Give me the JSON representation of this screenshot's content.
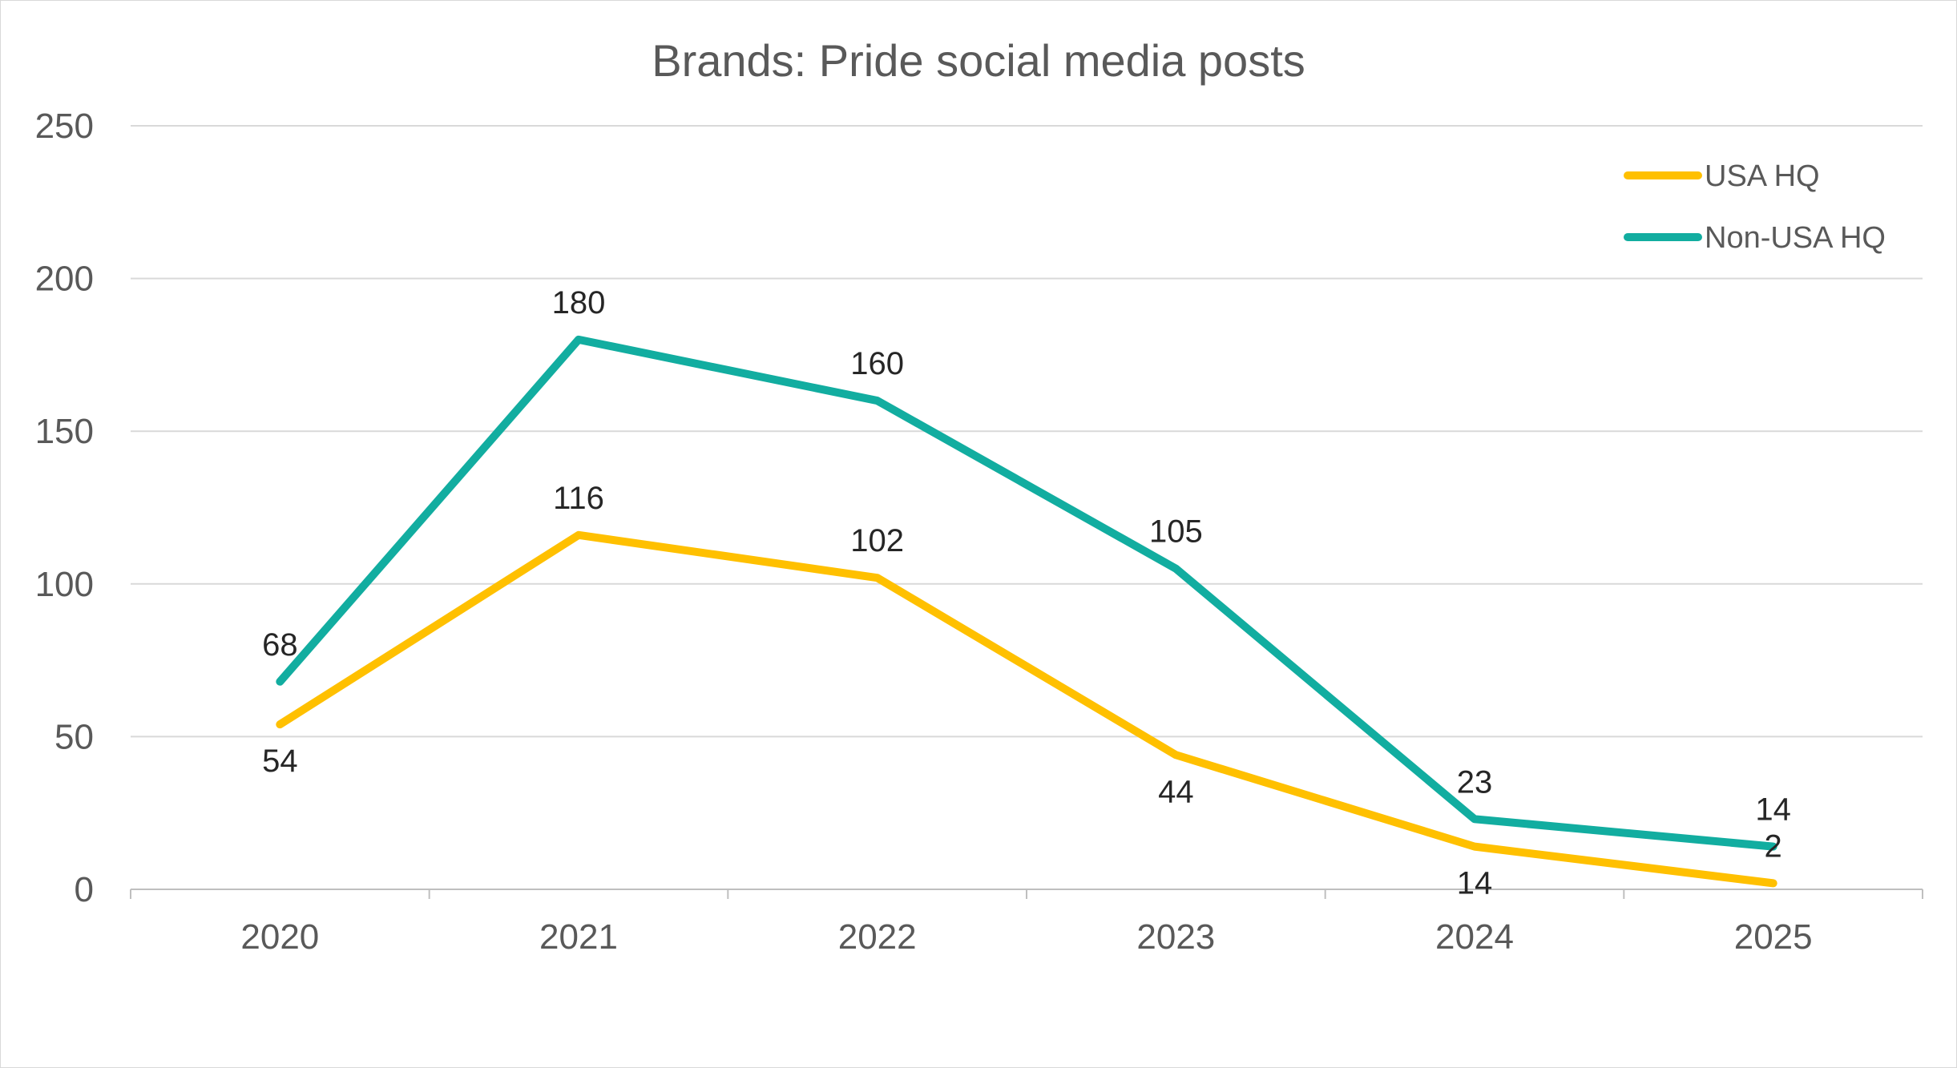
{
  "chart_data": {
    "type": "line",
    "title": "Brands: Pride social media posts",
    "xlabel": "",
    "ylabel": "",
    "categories": [
      "2020",
      "2021",
      "2022",
      "2023",
      "2024",
      "2025"
    ],
    "ylim": [
      0,
      250
    ],
    "yticks": [
      "0",
      "50",
      "100",
      "150",
      "200",
      "250"
    ],
    "grid": true,
    "legend_position": "top-right",
    "series": [
      {
        "name": "USA HQ",
        "color": "#FFC000",
        "values": [
          54,
          116,
          102,
          44,
          14,
          2
        ],
        "labels": [
          "54",
          "116",
          "102",
          "44",
          "14",
          "2"
        ],
        "label_position": [
          "below",
          "above",
          "above",
          "below",
          "below",
          "above"
        ]
      },
      {
        "name": "Non-USA HQ",
        "color": "#12ADA0",
        "values": [
          68,
          180,
          160,
          105,
          23,
          14
        ],
        "labels": [
          "68",
          "180",
          "160",
          "105",
          "23",
          "14"
        ],
        "label_position": [
          "above",
          "above",
          "above",
          "above",
          "above",
          "above"
        ]
      }
    ]
  }
}
